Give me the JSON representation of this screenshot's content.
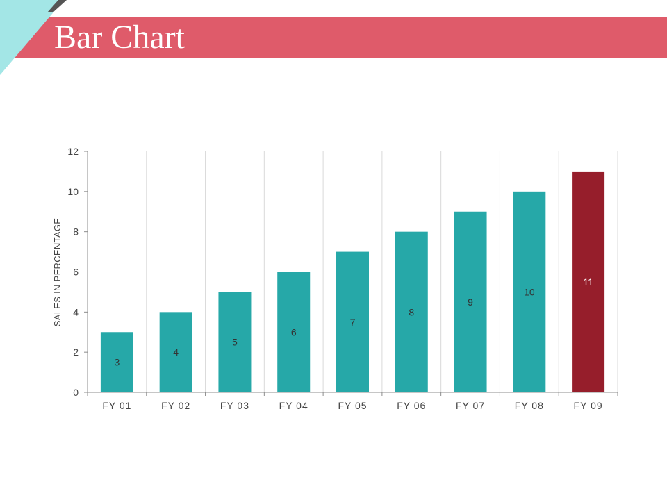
{
  "slide": {
    "title": "Bar Chart"
  },
  "colors": {
    "title_bar": "#df5b6a",
    "corner_accent": "#a3e6e6",
    "corner_dark": "#555555",
    "bar_default": "#26a8a8",
    "bar_highlight": "#961e2b"
  },
  "chart_data": {
    "type": "bar",
    "title": "",
    "xlabel": "",
    "ylabel": "SALES IN PERCENTAGE",
    "categories": [
      "FY 01",
      "FY 02",
      "FY 03",
      "FY 04",
      "FY 05",
      "FY 06",
      "FY 07",
      "FY 08",
      "FY 09"
    ],
    "values": [
      3,
      4,
      5,
      6,
      7,
      8,
      9,
      10,
      11
    ],
    "data_labels": [
      "3",
      "4",
      "5",
      "6",
      "7",
      "8",
      "9",
      "10",
      "11"
    ],
    "highlight_index": 8,
    "ylim": [
      0,
      12
    ],
    "yticks": [
      0,
      2,
      4,
      6,
      8,
      10,
      12
    ],
    "ytick_labels": [
      "0",
      "2",
      "4",
      "6",
      "8",
      "10",
      "12"
    ],
    "grid": "vertical",
    "legend": "none"
  }
}
